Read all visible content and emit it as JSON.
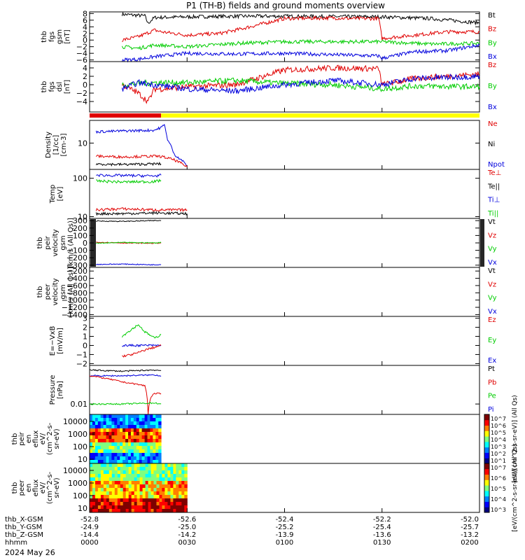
{
  "title": "P1 (TH-B) fields and ground moments overview",
  "date_label": "2024 May 26",
  "colors": {
    "black": "#000000",
    "red": "#e00000",
    "green": "#00cc00",
    "blue": "#0000dd",
    "yellow": "#ffff00"
  },
  "chart_data": {
    "type": "line",
    "x_range": [
      "0000",
      "0200"
    ],
    "x_ticks": [
      "0000",
      "0030",
      "0100",
      "0130",
      "0200"
    ],
    "x_tick_minutes": [
      0,
      30,
      60,
      90,
      120
    ],
    "ephemeris": [
      {
        "label": "thb_X-GSM",
        "values": [
          "-52.8",
          "-52.6",
          "-52.4",
          "-52.2",
          "-52.0"
        ]
      },
      {
        "label": "thb_Y-GSM",
        "values": [
          "-24.9",
          "-25.0",
          "-25.2",
          "-25.4",
          "-25.7"
        ]
      },
      {
        "label": "thb_Z-GSM",
        "values": [
          "-14.4",
          "-14.2",
          "-13.9",
          "-13.6",
          "-13.2"
        ]
      },
      {
        "label": "hhmm",
        "values": [
          "0000",
          "0030",
          "0100",
          "0130",
          "0200"
        ]
      }
    ],
    "state_bar": {
      "red_until_minute": 22,
      "red": "#e00000",
      "rest": "#ffff00"
    },
    "panels": [
      {
        "id": "fgs",
        "ylabel": [
          "thb",
          "fgs",
          "gsm",
          "[nT]"
        ],
        "ylim": [
          -6.5,
          8.5
        ],
        "ticks": [
          8,
          6,
          4,
          2,
          0,
          -2,
          -4,
          -6
        ],
        "tick_labels": [
          "8",
          "6",
          "4",
          "2",
          "0",
          "−2",
          "−4",
          "−6"
        ],
        "legend": [
          {
            "name": "Bt",
            "color": "#000000"
          },
          {
            "name": "Bz",
            "color": "#e00000"
          },
          {
            "name": "By",
            "color": "#00cc00"
          },
          {
            "name": "Bx",
            "color": "#0000dd"
          }
        ],
        "series": [
          {
            "name": "Bt",
            "color": "#000000",
            "x_min": [
              10,
              17,
              18,
              19,
              20,
              30,
              45,
              60,
              75,
              90,
              105,
              120
            ],
            "y": [
              7.8,
              7.3,
              5.0,
              6.0,
              6.8,
              7.0,
              7.2,
              7.2,
              7.1,
              7.0,
              6.5,
              5.2
            ]
          },
          {
            "name": "Bz",
            "color": "#e00000",
            "x_min": [
              10,
              15,
              20,
              22,
              30,
              40,
              45,
              60,
              75,
              80,
              89,
              90,
              100,
              110,
              120
            ],
            "y": [
              0,
              1,
              3,
              2.5,
              1.5,
              2,
              3,
              6.5,
              6.7,
              6.5,
              6.5,
              0.5,
              1.5,
              2.5,
              2.5
            ]
          },
          {
            "name": "By",
            "color": "#00cc00",
            "x_min": [
              10,
              15,
              20,
              30,
              45,
              60,
              75,
              90,
              105,
              120
            ],
            "y": [
              -2,
              -2.5,
              -1.5,
              -2,
              -1,
              -0.5,
              -0.5,
              -0.5,
              -1.2,
              -1.0
            ]
          },
          {
            "name": "Bx",
            "color": "#0000dd",
            "x_min": [
              10,
              15,
              20,
              30,
              45,
              60,
              75,
              89,
              90,
              100,
              110,
              120
            ],
            "y": [
              -6,
              -5.8,
              -5,
              -4,
              -4.2,
              -4,
              -4.4,
              -4.8,
              -5.5,
              -3.5,
              -3.2,
              -1.5
            ]
          }
        ]
      },
      {
        "id": "fgs_dsl",
        "ylabel": [
          "thb",
          "fgs",
          "dsl",
          "[nT]"
        ],
        "ylim": [
          -6.5,
          5.5
        ],
        "ticks": [
          4,
          2,
          0,
          -2,
          -4
        ],
        "tick_labels": [
          "4",
          "2",
          "0",
          "−2",
          "−4"
        ],
        "legend": [
          {
            "name": "Bz",
            "color": "#e00000"
          },
          {
            "name": "By",
            "color": "#00cc00"
          },
          {
            "name": "Bx",
            "color": "#0000dd"
          }
        ],
        "series": [
          {
            "name": "Bz",
            "color": "#e00000",
            "x_min": [
              10,
              15,
              18,
              20,
              22,
              30,
              45,
              60,
              75,
              89,
              90,
              100,
              120
            ],
            "y": [
              0,
              -2,
              -4,
              -1,
              -1,
              -0.5,
              0,
              3.5,
              4,
              3.8,
              0,
              1.5,
              2.5
            ]
          },
          {
            "name": "By",
            "color": "#00cc00",
            "x_min": [
              10,
              20,
              30,
              45,
              60,
              75,
              90,
              100,
              120
            ],
            "y": [
              0,
              0.5,
              0.5,
              1,
              0.3,
              0,
              -1,
              -0.3,
              -0.5
            ]
          },
          {
            "name": "Bx",
            "color": "#0000dd",
            "x_min": [
              10,
              15,
              20,
              30,
              45,
              60,
              75,
              90,
              100,
              120
            ],
            "y": [
              -1,
              0.5,
              0,
              -1,
              -1.5,
              0,
              1,
              0,
              1.5,
              2
            ]
          }
        ]
      },
      {
        "id": "density",
        "ylabel": [
          "Density",
          "[1/cc]",
          "[cm-3]"
        ],
        "log": true,
        "ylim": [
          2,
          40
        ],
        "ticks": [
          10
        ],
        "tick_labels": [
          "10"
        ],
        "legend": [
          {
            "name": "Ne",
            "color": "#e00000"
          },
          {
            "name": "Ni",
            "color": "#000000"
          },
          {
            "name": "Npot",
            "color": "#0000dd"
          }
        ],
        "series": [
          {
            "name": "Npot",
            "color": "#0000dd",
            "x_min": [
              2,
              10,
              20,
              22,
              23,
              24,
              26,
              30
            ],
            "y": [
              20,
              21,
              22,
              26,
              30,
              12,
              5,
              2.5
            ]
          },
          {
            "name": "Ne",
            "color": "#e00000",
            "x_min": [
              2,
              10,
              20,
              22,
              26,
              30
            ],
            "y": [
              4.5,
              4.3,
              4.5,
              4.4,
              3.6,
              2.3
            ]
          },
          {
            "name": "Ni",
            "color": "#000000",
            "x_min": [
              2,
              10,
              20,
              22
            ],
            "y": [
              2.8,
              2.7,
              2.8,
              2.8
            ]
          }
        ]
      },
      {
        "id": "temperature",
        "ylabel": [
          "Temp",
          "[eV]"
        ],
        "log": true,
        "ylim": [
          9,
          170
        ],
        "ticks": [
          100,
          10
        ],
        "tick_labels": [
          "100",
          "10"
        ],
        "legend": [
          {
            "name": "Te⊥",
            "color": "#e00000"
          },
          {
            "name": "Te||",
            "color": "#000000"
          },
          {
            "name": "Ti⊥",
            "color": "#0000dd"
          },
          {
            "name": "Ti||",
            "color": "#00cc00"
          }
        ],
        "series": [
          {
            "name": "Ti⊥",
            "color": "#0000dd",
            "x_min": [
              2,
              10,
              20,
              22
            ],
            "y": [
              120,
              118,
              115,
              120
            ]
          },
          {
            "name": "Ti||",
            "color": "#00cc00",
            "x_min": [
              2,
              10,
              20,
              22
            ],
            "y": [
              85,
              80,
              82,
              88
            ]
          },
          {
            "name": "Te⊥",
            "color": "#e00000",
            "x_min": [
              2,
              10,
              20,
              30
            ],
            "y": [
              15,
              16,
              15,
              15
            ]
          },
          {
            "name": "Te||",
            "color": "#000000",
            "x_min": [
              2,
              10,
              20,
              30
            ],
            "y": [
              12,
              12,
              12.5,
              12
            ]
          }
        ]
      },
      {
        "id": "peir_velocity",
        "ylabel": [
          "thb",
          "peir",
          "velocity",
          "gsm",
          "[km/s (All Qs)]"
        ],
        "ylim": [
          -330,
          330
        ],
        "ticks": [
          300,
          200,
          100,
          0,
          -100,
          -200,
          -300
        ],
        "tick_labels": [
          "300",
          "200",
          "100",
          "0",
          "−100",
          "−200",
          "−300"
        ],
        "legend": [
          {
            "name": "Vt",
            "color": "#000000"
          },
          {
            "name": "Vz",
            "color": "#e00000"
          },
          {
            "name": "Vy",
            "color": "#00cc00"
          },
          {
            "name": "Vx",
            "color": "#0000dd"
          }
        ],
        "series": [
          {
            "name": "Vt",
            "color": "#000000",
            "x_min": [
              2,
              10,
              20,
              22
            ],
            "y": [
              295,
              290,
              300,
              300
            ]
          },
          {
            "name": "Vz",
            "color": "#e00000",
            "x_min": [
              2,
              10,
              20,
              22
            ],
            "y": [
              10,
              0,
              -5,
              0
            ]
          },
          {
            "name": "Vy",
            "color": "#00cc00",
            "x_min": [
              2,
              10,
              20,
              22
            ],
            "y": [
              -5,
              5,
              0,
              5
            ]
          },
          {
            "name": "Vx",
            "color": "#0000dd",
            "x_min": [
              2,
              10,
              20,
              22
            ],
            "y": [
              -290,
              -285,
              -295,
              -290
            ]
          }
        ]
      },
      {
        "id": "peer_velocity",
        "ylabel": [
          "thb",
          "peer",
          "velocity",
          "gsm",
          "[km/s (All Qs)]"
        ],
        "ylim": [
          -1450,
          -100
        ],
        "ticks": [
          -200,
          -400,
          -600,
          -800,
          -1000,
          -1200,
          -1400
        ],
        "tick_labels": [
          "−200",
          "−400",
          "−600",
          "−800",
          "−1000",
          "−1200",
          "−1400"
        ],
        "legend": [
          {
            "name": "Vt",
            "color": "#000000"
          },
          {
            "name": "Vz",
            "color": "#e00000"
          },
          {
            "name": "Vy",
            "color": "#00cc00"
          },
          {
            "name": "Vx",
            "color": "#0000dd"
          }
        ],
        "series": []
      },
      {
        "id": "efield",
        "ylabel": [
          "E=−VxB",
          "[mV/m]"
        ],
        "ylim": [
          -2.2,
          3.2
        ],
        "ticks": [
          3,
          2,
          1,
          0,
          -1,
          -2
        ],
        "tick_labels": [
          "3",
          "2",
          "1",
          "0",
          "−1",
          "−2"
        ],
        "legend": [
          {
            "name": "Ez",
            "color": "#e00000"
          },
          {
            "name": "Ey",
            "color": "#00cc00"
          },
          {
            "name": "Ex",
            "color": "#0000dd"
          }
        ],
        "series": [
          {
            "name": "Ey",
            "color": "#00cc00",
            "x_min": [
              10,
              13,
              15,
              17,
              20,
              22
            ],
            "y": [
              1,
              1.8,
              2.3,
              1.5,
              0.8,
              1.2
            ]
          },
          {
            "name": "Ex",
            "color": "#0000dd",
            "x_min": [
              10,
              15,
              20,
              22
            ],
            "y": [
              0,
              0,
              0,
              0
            ]
          },
          {
            "name": "Ez",
            "color": "#e00000",
            "x_min": [
              10,
              13,
              15,
              17,
              20,
              22
            ],
            "y": [
              -1.2,
              -1,
              -0.8,
              -0.5,
              -0.2,
              0
            ]
          }
        ]
      },
      {
        "id": "pressure",
        "ylabel": [
          "Pressure",
          "[nPa]"
        ],
        "log": true,
        "ylim": [
          0.004,
          0.3
        ],
        "ticks": [
          0.01
        ],
        "tick_labels": [
          "0.01"
        ],
        "legend": [
          {
            "name": "Pt",
            "color": "#000000"
          },
          {
            "name": "Pb",
            "color": "#e00000"
          },
          {
            "name": "Pe",
            "color": "#00cc00"
          },
          {
            "name": "Pi",
            "color": "#0000dd"
          }
        ],
        "series": [
          {
            "name": "Pt",
            "color": "#000000",
            "x_min": [
              0,
              10,
              20,
              22
            ],
            "y": [
              0.2,
              0.18,
              0.2,
              0.19
            ]
          },
          {
            "name": "Pi",
            "color": "#0000dd",
            "x_min": [
              0,
              10,
              20,
              22
            ],
            "y": [
              0.12,
              0.12,
              0.13,
              0.12
            ]
          },
          {
            "name": "Pb",
            "color": "#e00000",
            "x_min": [
              0,
              10,
              17,
              18,
              19,
              20,
              22
            ],
            "y": [
              0.12,
              0.07,
              0.05,
              0.004,
              0.02,
              0.025,
              0.025
            ]
          },
          {
            "name": "Pe",
            "color": "#00cc00",
            "x_min": [
              0,
              10,
              20,
              22
            ],
            "y": [
              0.01,
              0.01,
              0.011,
              0.01
            ]
          }
        ]
      }
    ],
    "spectrograms": [
      {
        "id": "peir_eflux",
        "ylabel": [
          "thb",
          "peir",
          "en",
          "eflux",
          "eV/",
          "(cm^2-s-",
          "sr-eV)"
        ],
        "ticks": [
          "10000",
          "1000",
          "100",
          "10"
        ],
        "x_end_minute": 22,
        "colorbar_label": "[eV/(cm^2-s-sr-eV)] (All Qs)",
        "colorbar_ticks": [
          "10^7",
          "10^6",
          "10^5",
          "10^4",
          "10^3",
          "10^2",
          "10^1"
        ]
      },
      {
        "id": "peer_eflux",
        "ylabel": [
          "thb",
          "peer",
          "en",
          "eflux",
          "eV/",
          "(cm^2-s-",
          "sr-eV)"
        ],
        "ticks": [
          "10000",
          "1000",
          "100",
          "10"
        ],
        "x_end_minute": 30,
        "colorbar_label": "[eV/(cm^2-s-sr-eV)] (All Qs)",
        "colorbar_ticks": [
          "10^7",
          "10^6",
          "10^5",
          "10^4",
          "10^3"
        ]
      }
    ]
  }
}
